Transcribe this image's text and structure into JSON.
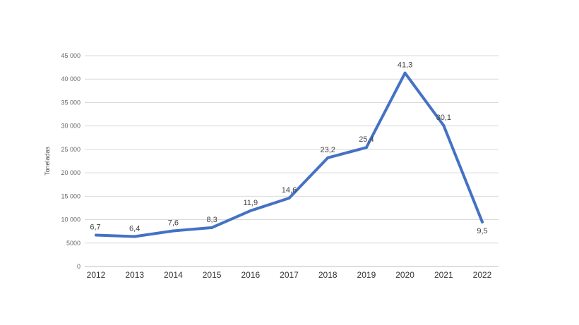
{
  "chart_data": {
    "type": "line",
    "ylabel": "Toneladas",
    "xlabel": "",
    "title": "",
    "ylim": [
      0,
      45000
    ],
    "y_ticks": [
      "0",
      "5000",
      "10 000",
      "15 000",
      "20 000",
      "25 000",
      "30 000",
      "35 000",
      "40 000",
      "45 000"
    ],
    "y_tick_values": [
      0,
      5000,
      10000,
      15000,
      20000,
      25000,
      30000,
      35000,
      40000,
      45000
    ],
    "categories": [
      "2012",
      "2013",
      "2014",
      "2015",
      "2016",
      "2017",
      "2018",
      "2019",
      "2020",
      "2021",
      "2022"
    ],
    "series": [
      {
        "values": [
          6700,
          6400,
          7600,
          8300,
          11900,
          14600,
          23200,
          25400,
          41300,
          30100,
          9500
        ],
        "labels": [
          "6,7",
          "6,4",
          "7,6",
          "8,3",
          "11,9",
          "14,6",
          "23,2",
          "25,4",
          "41,3",
          "30,1",
          "9,5"
        ],
        "color": "#4472c4"
      }
    ],
    "grid": true,
    "legend": "none"
  }
}
